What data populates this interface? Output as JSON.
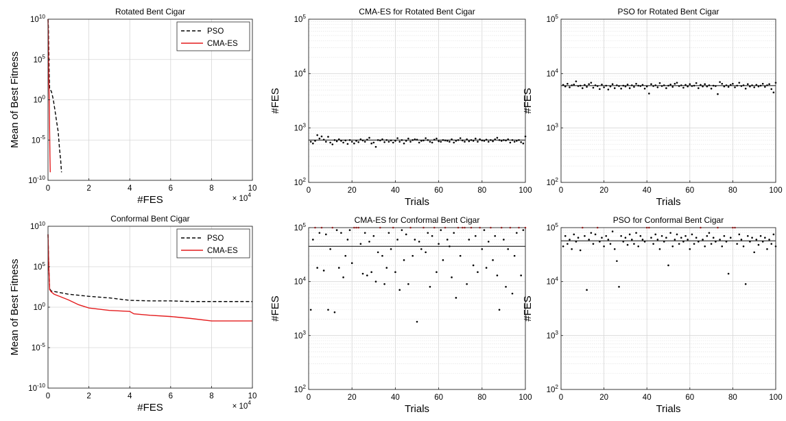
{
  "figure": {
    "x_multiplier_label": "× 10"
  },
  "chart_data": [
    {
      "id": "p1",
      "type": "line",
      "title": "Rotated Bent Cigar",
      "xlabel": "#FES",
      "ylabel": "Mean of Best Fitness",
      "x_scale": "linear",
      "y_scale": "log",
      "xlim": [
        0,
        100000
      ],
      "ylim": [
        1e-10,
        10000000000.0
      ],
      "x_exponent": "4",
      "x_ticks": [
        0,
        20000,
        40000,
        60000,
        80000,
        100000
      ],
      "x_tick_labels": [
        "0",
        "2",
        "4",
        "6",
        "8",
        "10"
      ],
      "y_ticks": [
        1e-10,
        1e-05,
        1,
        100000.0,
        10000000000.0
      ],
      "y_tick_labels": [
        {
          "base": "10",
          "exp": "-10"
        },
        {
          "base": "10",
          "exp": "-5"
        },
        {
          "base": "10",
          "exp": "0"
        },
        {
          "base": "10",
          "exp": "5"
        },
        {
          "base": "10",
          "exp": "10"
        }
      ],
      "grid": true,
      "legend": "top-right",
      "series": [
        {
          "name": "PSO",
          "color": "#000000",
          "dash": "dashed",
          "points": [
            [
              0,
              10000000000.0
            ],
            [
              200,
              1000000000.0
            ],
            [
              400,
              1000000.0
            ],
            [
              600,
              1000.0
            ],
            [
              800,
              20
            ],
            [
              1200,
              15
            ],
            [
              1600,
              12
            ],
            [
              2000,
              5
            ],
            [
              2600,
              1
            ],
            [
              3400,
              0.05
            ],
            [
              4200,
              0.002
            ],
            [
              5000,
              0.0001
            ],
            [
              5600,
              1e-06
            ],
            [
              6200,
              3e-08
            ],
            [
              6600,
              1e-09
            ]
          ]
        },
        {
          "name": "CMA-ES",
          "color": "#e41a1c",
          "dash": "solid",
          "points": [
            [
              0,
              10000000000.0
            ],
            [
              200,
              10000000.0
            ],
            [
              350,
              1000.0
            ],
            [
              500,
              20
            ],
            [
              650,
              0.1
            ],
            [
              800,
              0.0001
            ],
            [
              950,
              1e-07
            ],
            [
              1100,
              1e-09
            ]
          ]
        }
      ]
    },
    {
      "id": "p2",
      "type": "scatter",
      "title": "CMA-ES for Rotated Bent Cigar",
      "xlabel": "Trials",
      "ylabel": "#FES",
      "y_scale": "log",
      "xlim": [
        0,
        100
      ],
      "ylim": [
        100,
        100000
      ],
      "x_ticks": [
        0,
        20,
        40,
        60,
        80,
        100
      ],
      "y_ticks": [
        100,
        1000,
        10000,
        100000
      ],
      "y_tick_labels": [
        {
          "base": "10",
          "exp": "2"
        },
        {
          "base": "10",
          "exp": "3"
        },
        {
          "base": "10",
          "exp": "4"
        },
        {
          "base": "10",
          "exp": "5"
        }
      ],
      "grid": true,
      "mean": 600,
      "max_color": "#e41a1c",
      "values": [
        560,
        520,
        580,
        740,
        640,
        700,
        610,
        560,
        690,
        540,
        500,
        600,
        570,
        620,
        580,
        540,
        590,
        510,
        600,
        560,
        520,
        580,
        550,
        620,
        590,
        560,
        610,
        660,
        520,
        540,
        450,
        600,
        590,
        620,
        550,
        600,
        560,
        590,
        540,
        580,
        650,
        560,
        600,
        520,
        580,
        640,
        560,
        600,
        620,
        610,
        540,
        580,
        590,
        650,
        600,
        560,
        540,
        610,
        640,
        570,
        560,
        600,
        590,
        580,
        560,
        620,
        540,
        580,
        600,
        650,
        590,
        560,
        620,
        570,
        600,
        580,
        640,
        560,
        620,
        590,
        580,
        610,
        560,
        600,
        570,
        620,
        660,
        600,
        580,
        600,
        590,
        620,
        540,
        600,
        560,
        580,
        600,
        550,
        520,
        700
      ]
    },
    {
      "id": "p3",
      "type": "scatter",
      "title": "PSO for Rotated Bent Cigar",
      "xlabel": "Trials",
      "ylabel": "#FES",
      "y_scale": "log",
      "xlim": [
        0,
        100
      ],
      "ylim": [
        100,
        100000
      ],
      "x_ticks": [
        0,
        20,
        40,
        60,
        80,
        100
      ],
      "y_ticks": [
        100,
        1000,
        10000,
        100000
      ],
      "y_tick_labels": [
        {
          "base": "10",
          "exp": "2"
        },
        {
          "base": "10",
          "exp": "3"
        },
        {
          "base": "10",
          "exp": "4"
        },
        {
          "base": "10",
          "exp": "5"
        }
      ],
      "grid": true,
      "mean": 6000,
      "max_color": "#e41a1c",
      "values": [
        6200,
        5800,
        6500,
        5600,
        6100,
        6300,
        7200,
        5900,
        6000,
        5400,
        6200,
        5700,
        6400,
        6800,
        5500,
        6100,
        5900,
        5200,
        6300,
        5600,
        6000,
        5100,
        5800,
        6400,
        5400,
        6100,
        5900,
        5300,
        6000,
        5800,
        6300,
        5400,
        6100,
        5700,
        6500,
        6000,
        5900,
        6200,
        5300,
        5800,
        4300,
        6400,
        5900,
        6100,
        5600,
        6700,
        5900,
        6100,
        5400,
        6000,
        6300,
        5700,
        6500,
        6800,
        5900,
        6100,
        5500,
        6200,
        5800,
        6400,
        5900,
        6000,
        6700,
        5400,
        6200,
        5800,
        6400,
        5800,
        6100,
        5300,
        6000,
        5900,
        4200,
        7000,
        6500,
        5800,
        6100,
        5700,
        6200,
        6500,
        5600,
        6000,
        6800,
        5900,
        6100,
        5300,
        6400,
        5800,
        6100,
        5600,
        6200,
        5800,
        6000,
        6500,
        5700,
        6100,
        6400,
        5200,
        4500,
        6800
      ]
    },
    {
      "id": "p4",
      "type": "line",
      "title": "Conformal Bent Cigar",
      "xlabel": "#FES",
      "ylabel": "Mean of Best Fitness",
      "x_scale": "linear",
      "y_scale": "log",
      "xlim": [
        0,
        100000
      ],
      "ylim": [
        1e-10,
        10000000000.0
      ],
      "x_exponent": "4",
      "x_ticks": [
        0,
        20000,
        40000,
        60000,
        80000,
        100000
      ],
      "x_tick_labels": [
        "0",
        "2",
        "4",
        "6",
        "8",
        "10"
      ],
      "y_ticks": [
        1e-10,
        1e-05,
        1,
        100000.0,
        10000000000.0
      ],
      "y_tick_labels": [
        {
          "base": "10",
          "exp": "-10"
        },
        {
          "base": "10",
          "exp": "-5"
        },
        {
          "base": "10",
          "exp": "0"
        },
        {
          "base": "10",
          "exp": "5"
        },
        {
          "base": "10",
          "exp": "10"
        }
      ],
      "grid": true,
      "legend": "top-right",
      "series": [
        {
          "name": "PSO",
          "color": "#000000",
          "dash": "dashed",
          "points": [
            [
              0,
              1000000000.0
            ],
            [
              400,
              100000.0
            ],
            [
              800,
              200
            ],
            [
              1500,
              100
            ],
            [
              5000,
              70
            ],
            [
              10000,
              40
            ],
            [
              20000,
              22
            ],
            [
              30000,
              14
            ],
            [
              40000,
              7
            ],
            [
              50000,
              6
            ],
            [
              60000,
              6
            ],
            [
              70000,
              5
            ],
            [
              80000,
              5
            ],
            [
              90000,
              5
            ],
            [
              100000,
              5
            ]
          ]
        },
        {
          "name": "CMA-ES",
          "color": "#e41a1c",
          "dash": "solid",
          "points": [
            [
              0,
              1000000000.0
            ],
            [
              400,
              100000.0
            ],
            [
              800,
              150
            ],
            [
              1500,
              80
            ],
            [
              3000,
              40
            ],
            [
              6000,
              20
            ],
            [
              10000,
              8
            ],
            [
              15000,
              2
            ],
            [
              20000,
              0.8
            ],
            [
              30000,
              0.4
            ],
            [
              40000,
              0.3
            ],
            [
              42000,
              0.15
            ],
            [
              50000,
              0.1
            ],
            [
              60000,
              0.07
            ],
            [
              70000,
              0.04
            ],
            [
              80000,
              0.02
            ],
            [
              90000,
              0.02
            ],
            [
              100000,
              0.02
            ]
          ]
        }
      ]
    },
    {
      "id": "p5",
      "type": "scatter",
      "title": "CMA-ES for Conformal Bent Cigar",
      "xlabel": "Trials",
      "ylabel": "#FES",
      "y_scale": "log",
      "xlim": [
        0,
        100
      ],
      "ylim": [
        100,
        100000
      ],
      "x_ticks": [
        0,
        20,
        40,
        60,
        80,
        100
      ],
      "y_ticks": [
        100,
        1000,
        10000,
        100000
      ],
      "y_tick_labels": [
        {
          "base": "10",
          "exp": "2"
        },
        {
          "base": "10",
          "exp": "3"
        },
        {
          "base": "10",
          "exp": "4"
        },
        {
          "base": "10",
          "exp": "5"
        }
      ],
      "grid": true,
      "mean": 45000,
      "max_color": "#e41a1c",
      "values": [
        3000,
        60000,
        100000,
        18000,
        80000,
        100000,
        16000,
        75000,
        3000,
        40000,
        100000,
        2700,
        90000,
        18000,
        80000,
        12000,
        30000,
        60000,
        90000,
        22000,
        100000,
        100000,
        100000,
        50000,
        14000,
        80000,
        13000,
        55000,
        15000,
        70000,
        10000,
        35000,
        100000,
        30000,
        9000,
        18000,
        80000,
        40000,
        100000,
        15000,
        60000,
        7000,
        90000,
        25000,
        75000,
        9000,
        100000,
        30000,
        60000,
        1800,
        55000,
        40000,
        100000,
        35000,
        80000,
        8000,
        70000,
        100000,
        15000,
        50000,
        90000,
        25000,
        100000,
        60000,
        45000,
        12000,
        80000,
        5000,
        100000,
        30000,
        100000,
        100000,
        9000,
        60000,
        100000,
        20000,
        70000,
        15000,
        100000,
        40000,
        90000,
        18000,
        55000,
        100000,
        25000,
        70000,
        13000,
        3000,
        100000,
        60000,
        8000,
        40000,
        100000,
        6000,
        30000,
        80000,
        100000,
        13000,
        90000,
        100000
      ]
    },
    {
      "id": "p6",
      "type": "scatter",
      "title": "PSO for Conformal Bent Cigar",
      "xlabel": "Trials",
      "ylabel": "#FES",
      "y_scale": "log",
      "xlim": [
        0,
        100
      ],
      "ylim": [
        100,
        100000
      ],
      "x_ticks": [
        0,
        20,
        40,
        60,
        80,
        100
      ],
      "y_ticks": [
        100,
        1000,
        10000,
        100000
      ],
      "y_tick_labels": [
        {
          "base": "10",
          "exp": "2"
        },
        {
          "base": "10",
          "exp": "3"
        },
        {
          "base": "10",
          "exp": "4"
        },
        {
          "base": "10",
          "exp": "5"
        }
      ],
      "grid": true,
      "mean": 57000,
      "max_color": "#e41a1c",
      "values": [
        45000,
        70000,
        50000,
        60000,
        40000,
        75000,
        55000,
        65000,
        38000,
        100000,
        70000,
        7000,
        60000,
        80000,
        50000,
        75000,
        100000,
        55000,
        65000,
        45000,
        70000,
        60000,
        50000,
        85000,
        40000,
        24000,
        8000,
        70000,
        55000,
        65000,
        48000,
        75000,
        60000,
        50000,
        80000,
        45000,
        70000,
        60000,
        55000,
        100000,
        100000,
        65000,
        50000,
        75000,
        60000,
        40000,
        70000,
        55000,
        65000,
        20000,
        80000,
        45000,
        60000,
        75000,
        50000,
        65000,
        55000,
        70000,
        60000,
        40000,
        75000,
        50000,
        65000,
        55000,
        100000,
        60000,
        45000,
        70000,
        80000,
        50000,
        65000,
        55000,
        100000,
        60000,
        45000,
        70000,
        55000,
        14000,
        65000,
        100000,
        100000,
        50000,
        75000,
        60000,
        45000,
        9000,
        70000,
        55000,
        65000,
        35000,
        60000,
        48000,
        70000,
        55000,
        65000,
        40000,
        60000,
        50000,
        75000,
        45000
      ]
    }
  ]
}
